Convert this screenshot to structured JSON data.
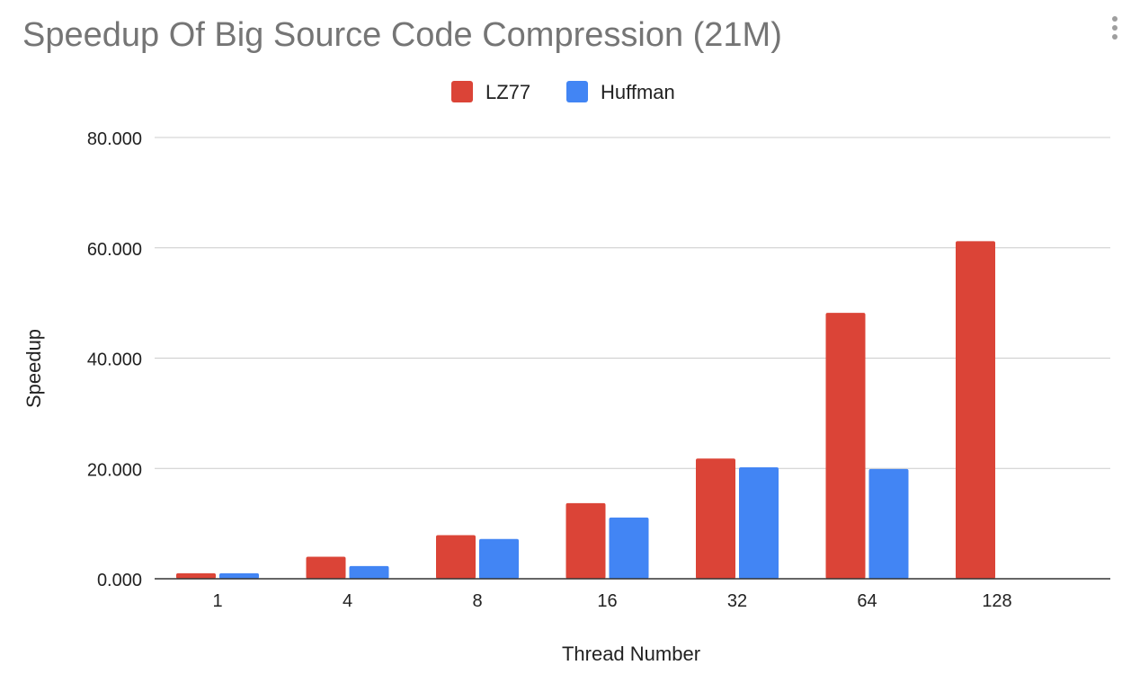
{
  "chart_data": {
    "type": "bar",
    "title": "Speedup Of Big Source Code Compression (21M)",
    "xlabel": "Thread Number",
    "ylabel": "Speedup",
    "categories": [
      "1",
      "4",
      "8",
      "16",
      "32",
      "64",
      "128"
    ],
    "series": [
      {
        "name": "LZ77",
        "color": "#db4437",
        "values": [
          1.0,
          4.0,
          7.9,
          13.7,
          21.8,
          48.2,
          61.2
        ]
      },
      {
        "name": "Huffman",
        "color": "#4285f4",
        "values": [
          1.0,
          2.3,
          7.2,
          11.1,
          20.2,
          19.9,
          null
        ]
      }
    ],
    "ylim": [
      0,
      80
    ],
    "yticks": [
      "0.000",
      "20.000",
      "40.000",
      "60.000",
      "80.000"
    ],
    "ytick_values": [
      0,
      20,
      40,
      60,
      80
    ],
    "grid": true,
    "legend_position": "top-center"
  },
  "menu": {
    "icon": "more-vert-icon"
  }
}
